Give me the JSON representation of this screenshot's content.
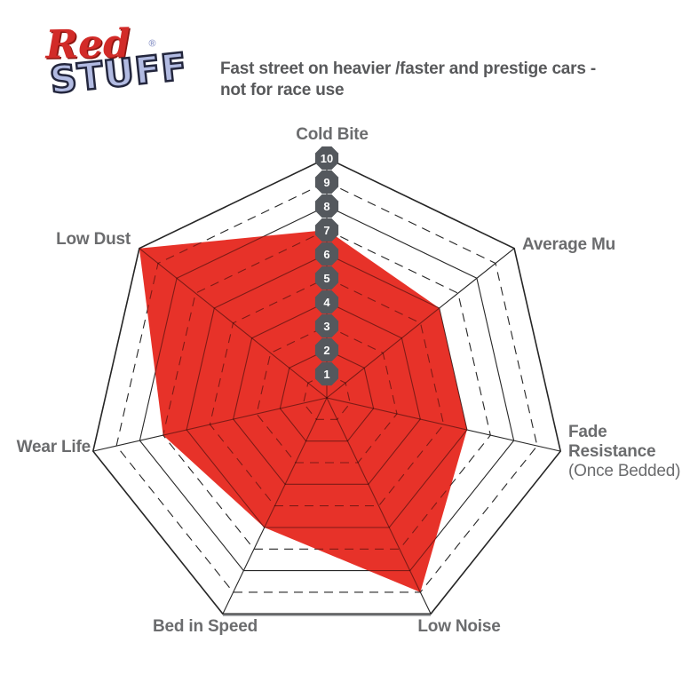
{
  "logo": {
    "word1": "Red",
    "word2": "STUFF",
    "registered": "®"
  },
  "header": {
    "title_line1": "Fast street on heavier /faster and prestige cars -",
    "title_line2": "not for race use"
  },
  "colors": {
    "series_red": "#e73229",
    "badge_fill": "#54585d",
    "badge_text": "#ffffff",
    "grid_line": "#262626",
    "axis_label_gray": "#6b6c6e",
    "title_gray": "#58595b",
    "baseline_gray": "#8f9194",
    "logo_red": "#d22b28",
    "logo_blue": "#b2bbe2"
  },
  "chart_data": {
    "type": "radar",
    "title": "Fast street on heavier /faster and prestige cars - not for race use",
    "scale": {
      "min": 0,
      "max": 10,
      "tick_labels": [
        "1",
        "2",
        "3",
        "4",
        "5",
        "6",
        "7",
        "8",
        "9",
        "10"
      ]
    },
    "grid": {
      "rings": 10,
      "ring_style": "even rings solid, odd rings dashed",
      "spokes": 7,
      "gridlines_on": true,
      "legend_position": "none"
    },
    "axes": [
      {
        "label": "Cold Bite",
        "value": 7
      },
      {
        "label": "Average Mu",
        "value": 6
      },
      {
        "label": "Fade Resistance",
        "label_lines": [
          "Fade",
          "Resistance"
        ],
        "sublabel": "(Once Bedded)",
        "value": 6
      },
      {
        "label": "Low Noise",
        "value": 9
      },
      {
        "label": "Bed in Speed",
        "value": 6
      },
      {
        "label": "Wear Life",
        "value": 7
      },
      {
        "label": "Low Dust",
        "value": 10
      }
    ],
    "series": [
      {
        "name": "RedStuff",
        "values": [
          7,
          6,
          6,
          9,
          6,
          7,
          10
        ],
        "color": "#e73229"
      }
    ]
  }
}
